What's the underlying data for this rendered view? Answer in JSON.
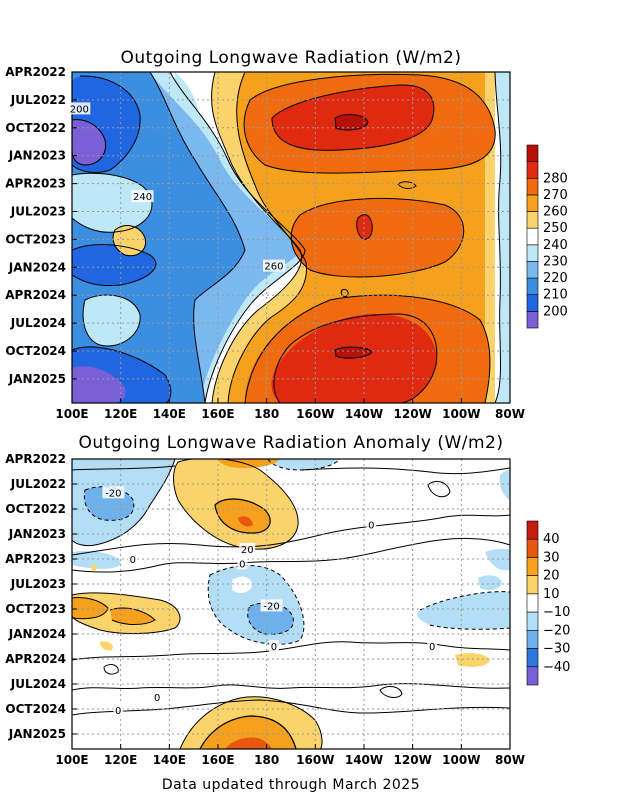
{
  "chart_data": [
    {
      "type": "heatmap",
      "title": "Outgoing Longwave Radiation (W/m2)",
      "x_ticks": [
        "100E",
        "120E",
        "140E",
        "160E",
        "180",
        "160W",
        "140W",
        "120W",
        "100W",
        "80W"
      ],
      "y_ticks": [
        "APR2022",
        "JUL2022",
        "OCT2022",
        "JAN2023",
        "APR2023",
        "JUL2023",
        "OCT2023",
        "JAN2024",
        "APR2024",
        "JUL2024",
        "OCT2024",
        "JAN2025"
      ],
      "colorbar_levels": [
        200,
        210,
        220,
        230,
        240,
        250,
        260,
        270,
        280
      ],
      "colorbar_colors": [
        "#7a5fd6",
        "#1f66e0",
        "#3c8ee0",
        "#7ab8ef",
        "#bfe8f7",
        "#ffffff",
        "#fbd36b",
        "#f5a11e",
        "#f06b10",
        "#e02a0f",
        "#b81109"
      ],
      "contour_labels": [
        {
          "text": "200",
          "lon": 103,
          "t": 0.11
        },
        {
          "text": "240",
          "lon": 129,
          "t": 0.375
        },
        {
          "text": "260",
          "lon": 183,
          "t": 0.585
        }
      ]
    },
    {
      "type": "heatmap",
      "title": "Outgoing Longwave Radiation Anomaly (W/m2)",
      "x_ticks": [
        "100E",
        "120E",
        "140E",
        "160E",
        "180",
        "160W",
        "140W",
        "120W",
        "100W",
        "80W"
      ],
      "y_ticks": [
        "APR2022",
        "JUL2022",
        "OCT2022",
        "JAN2023",
        "APR2023",
        "JUL2023",
        "OCT2023",
        "JAN2024",
        "APR2024",
        "JUL2024",
        "OCT2024",
        "JAN2025"
      ],
      "colorbar_levels": [
        40,
        30,
        20,
        10,
        -10,
        -20,
        -30,
        -40
      ],
      "colorbar_colors": [
        "#c81a0d",
        "#e85712",
        "#f5a11e",
        "#fbd36b",
        "#ffffff",
        "#b3def6",
        "#6fb1ea",
        "#2f78db",
        "#7a5fd6"
      ],
      "contour_labels": [
        {
          "text": "-20",
          "lon": 117,
          "t": 0.115
        },
        {
          "text": "20",
          "lon": 172,
          "t": 0.31
        },
        {
          "text": "0",
          "lon": 223,
          "t": 0.225
        },
        {
          "text": "0",
          "lon": 170,
          "t": 0.36
        },
        {
          "text": "0",
          "lon": 125,
          "t": 0.345
        },
        {
          "text": "-20",
          "lon": 182,
          "t": 0.505
        },
        {
          "text": "0",
          "lon": 183,
          "t": 0.645
        },
        {
          "text": "0",
          "lon": 248,
          "t": 0.645
        },
        {
          "text": "0",
          "lon": 135,
          "t": 0.82
        },
        {
          "text": "0",
          "lon": 119,
          "t": 0.865
        }
      ]
    }
  ],
  "footer": "Data updated through March 2025"
}
